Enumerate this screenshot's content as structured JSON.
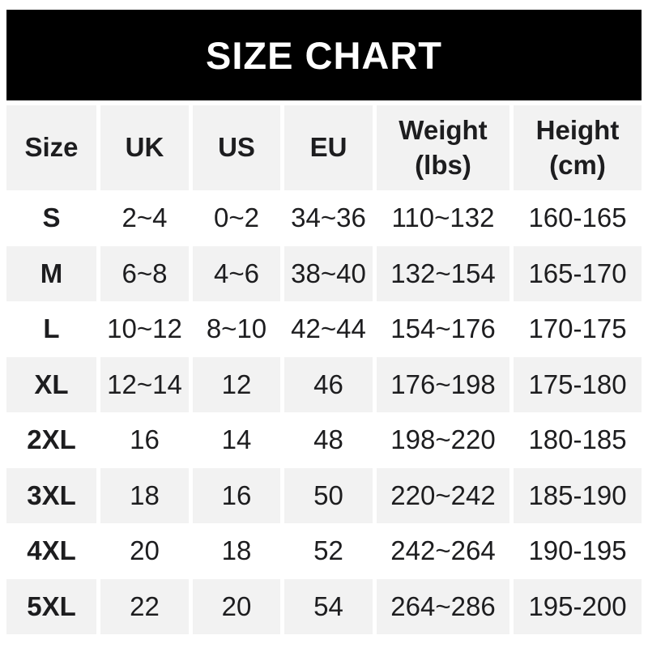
{
  "banner": {
    "title": "SIZE CHART"
  },
  "table": {
    "header_display": [
      "Size",
      "UK",
      "US",
      "EU",
      "Weight\n(lbs)",
      "Height\n(cm)"
    ]
  },
  "chart_data": {
    "type": "table",
    "title": "SIZE CHART",
    "columns": [
      "Size",
      "UK",
      "US",
      "EU",
      "Weight (lbs)",
      "Height (cm)"
    ],
    "rows": [
      [
        "S",
        "2~4",
        "0~2",
        "34~36",
        "110~132",
        "160-165"
      ],
      [
        "M",
        "6~8",
        "4~6",
        "38~40",
        "132~154",
        "165-170"
      ],
      [
        "L",
        "10~12",
        "8~10",
        "42~44",
        "154~176",
        "170-175"
      ],
      [
        "XL",
        "12~14",
        "12",
        "46",
        "176~198",
        "175-180"
      ],
      [
        "2XL",
        "16",
        "14",
        "48",
        "198~220",
        "180-185"
      ],
      [
        "3XL",
        "18",
        "16",
        "50",
        "220~242",
        "185-190"
      ],
      [
        "4XL",
        "20",
        "18",
        "52",
        "242~264",
        "190-195"
      ],
      [
        "5XL",
        "22",
        "20",
        "54",
        "264~286",
        "195-200"
      ]
    ],
    "layout": {
      "striped_rows": "header and alternating body rows M, XL, 3XL, 5XL",
      "stripe_color": "#f2f2f2",
      "banner_bg": "#000000",
      "banner_text_color": "#ffffff",
      "text_color": "#1d1d1f"
    }
  }
}
